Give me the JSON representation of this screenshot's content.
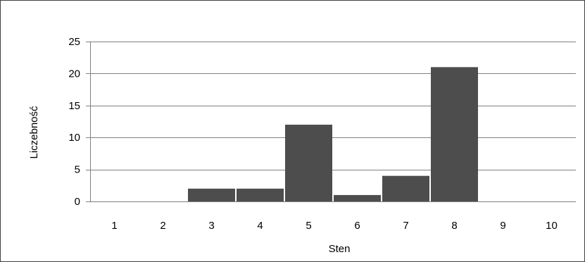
{
  "chart_data": {
    "type": "bar",
    "title": "",
    "xlabel": "Sten",
    "ylabel": "Liczebność",
    "categories": [
      "1",
      "2",
      "3",
      "4",
      "5",
      "6",
      "7",
      "8",
      "9",
      "10"
    ],
    "values": [
      0,
      0,
      2,
      2,
      12,
      1,
      4,
      21,
      0,
      0
    ],
    "ylim": [
      0,
      25
    ],
    "yticks": [
      "0",
      "5",
      "10",
      "15",
      "20",
      "25"
    ],
    "grid": true,
    "legend": "none",
    "colors": {
      "bar": "#4d4d4d",
      "grid": "#808080",
      "axis": "#808080"
    }
  }
}
